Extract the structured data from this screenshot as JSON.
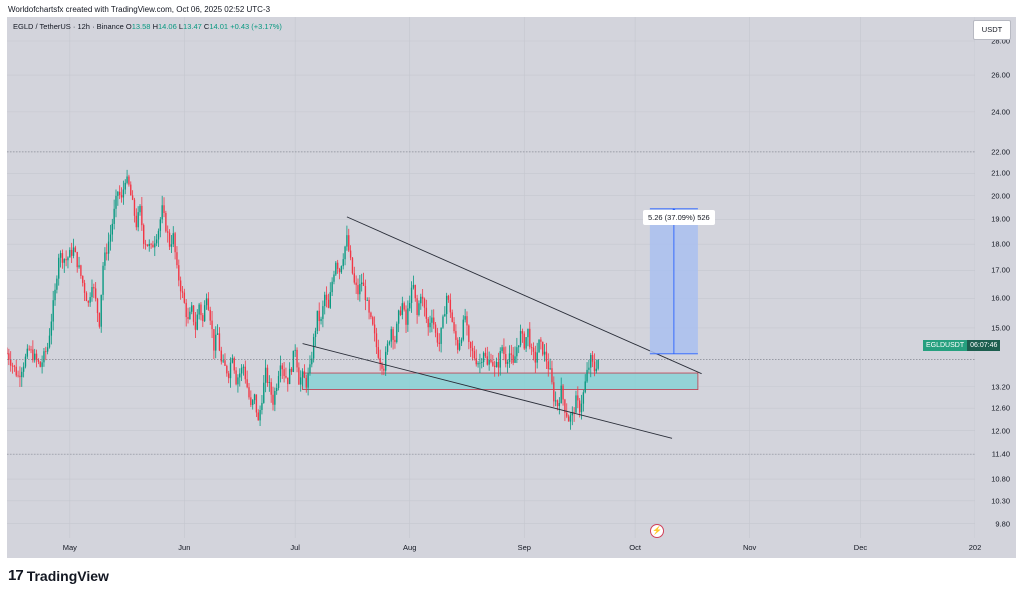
{
  "credit": "Worldofchartsfx created with TradingView.com, Oct 06, 2025 02:52 UTC-3",
  "legend": {
    "symbol": "EGLD / TetherUS · 12h · Binance",
    "o_label": "O",
    "o": "13.58",
    "h_label": "H",
    "h": "14.06",
    "l_label": "L",
    "l": "13.47",
    "c_label": "C",
    "c": "14.01",
    "change": "+0.43 (+3.17%)"
  },
  "currency_badge": "USDT",
  "price_tag": {
    "symbol": "EGLDUSDT",
    "countdown": "06:07:46"
  },
  "measure_label": "5.26 (37.09%) 526",
  "brand": {
    "logo": "17",
    "name": "TradingView"
  },
  "colors": {
    "up": "#089981",
    "down": "#f23645",
    "background": "#d3d4dc",
    "zone_fill": "#7fd3d6",
    "zone_border": "#c0394b",
    "projection_fill": "#a9bff0",
    "projection_line": "#2962ff"
  },
  "flash_icon": "lightning-icon",
  "chart_data": {
    "type": "candlestick",
    "interval": "12h",
    "scale": "log",
    "y_ticks": [
      "28.00",
      "26.00",
      "24.00",
      "22.00",
      "21.00",
      "20.00",
      "19.00",
      "18.00",
      "17.00",
      "16.00",
      "15.00",
      "13.20",
      "12.60",
      "12.00",
      "11.40",
      "10.80",
      "10.30",
      "9.80"
    ],
    "x_ticks": [
      "May",
      "Jun",
      "Jul",
      "Aug",
      "Sep",
      "Oct",
      "Nov",
      "Dec",
      "202"
    ],
    "x_tick_days": [
      0,
      31,
      61,
      92,
      123,
      153,
      184,
      214,
      245
    ],
    "ylim": [
      9.5,
      29.5
    ],
    "xlim_days": [
      -17,
      245
    ],
    "horizontal_levels": [
      22.0,
      11.4
    ],
    "last_price": 14.01,
    "support_zone": {
      "start_day": 63,
      "end_day": 170,
      "top": 13.6,
      "bottom": 13.12
    },
    "trendlines": [
      {
        "name": "upper",
        "from": {
          "day": 75,
          "price": 19.1
        },
        "to": {
          "day": 171,
          "price": 13.58
        }
      },
      {
        "name": "lower",
        "from": {
          "day": 63,
          "price": 14.5
        },
        "to": {
          "day": 163,
          "price": 11.8
        }
      }
    ],
    "projection": {
      "start_day": 157,
      "end_day": 170,
      "from_price": 14.18,
      "to_price": 19.44,
      "change": "5.26",
      "percent": "37.09%",
      "bars": "526"
    },
    "path": [
      [
        -17,
        14.2
      ],
      [
        -14,
        13.5
      ],
      [
        -11,
        14.3
      ],
      [
        -8,
        13.8
      ],
      [
        -6,
        14.4
      ],
      [
        -4,
        16.2
      ],
      [
        -3,
        17.6
      ],
      [
        -1,
        17.4
      ],
      [
        1,
        17.8
      ],
      [
        3,
        16.8
      ],
      [
        5,
        15.8
      ],
      [
        6,
        16.6
      ],
      [
        8,
        15.2
      ],
      [
        9,
        17.2
      ],
      [
        11,
        18.4
      ],
      [
        13,
        20.2
      ],
      [
        14,
        19.8
      ],
      [
        15,
        20.8
      ],
      [
        16,
        20.4
      ],
      [
        17,
        19.6
      ],
      [
        18,
        18.8
      ],
      [
        19,
        19.4
      ],
      [
        20,
        18.2
      ],
      [
        22,
        17.8
      ],
      [
        24,
        18.6
      ],
      [
        25,
        19.4
      ],
      [
        27,
        18.0
      ],
      [
        28,
        18.3
      ],
      [
        29,
        17.0
      ],
      [
        30,
        16.4
      ],
      [
        31,
        15.8
      ],
      [
        32,
        15.2
      ],
      [
        33,
        15.6
      ],
      [
        34,
        15.0
      ],
      [
        35,
        15.8
      ],
      [
        36,
        15.2
      ],
      [
        37,
        16.2
      ],
      [
        38,
        15.4
      ],
      [
        39,
        14.4
      ],
      [
        40,
        14.8
      ],
      [
        41,
        13.9
      ],
      [
        43,
        13.6
      ],
      [
        44,
        14.2
      ],
      [
        45,
        13.4
      ],
      [
        47,
        13.8
      ],
      [
        48,
        13.2
      ],
      [
        49,
        12.6
      ],
      [
        50,
        12.9
      ],
      [
        51,
        12.2
      ],
      [
        52,
        12.9
      ],
      [
        53,
        13.6
      ],
      [
        54,
        13.2
      ],
      [
        55,
        12.8
      ],
      [
        56,
        13.3
      ],
      [
        57,
        14.0
      ],
      [
        58,
        13.6
      ],
      [
        59,
        13.4
      ],
      [
        60,
        13.8
      ],
      [
        61,
        14.4
      ],
      [
        62,
        13.4
      ],
      [
        63,
        13.5
      ],
      [
        64,
        13.3
      ],
      [
        65,
        13.7
      ],
      [
        66,
        14.6
      ],
      [
        67,
        15.4
      ],
      [
        68,
        15.2
      ],
      [
        69,
        16.1
      ],
      [
        70,
        15.6
      ],
      [
        71,
        16.6
      ],
      [
        72,
        17.4
      ],
      [
        73,
        17.0
      ],
      [
        74,
        17.6
      ],
      [
        75,
        18.2
      ],
      [
        76,
        17.3
      ],
      [
        77,
        16.5
      ],
      [
        78,
        16.2
      ],
      [
        79,
        16.6
      ],
      [
        80,
        16.1
      ],
      [
        81,
        15.4
      ],
      [
        82,
        15.0
      ],
      [
        83,
        14.4
      ],
      [
        84,
        14.0
      ],
      [
        85,
        13.8
      ],
      [
        86,
        14.4
      ],
      [
        87,
        15.0
      ],
      [
        88,
        14.6
      ],
      [
        89,
        15.4
      ],
      [
        90,
        15.8
      ],
      [
        91,
        15.1
      ],
      [
        92,
        16.0
      ],
      [
        93,
        16.4
      ],
      [
        94,
        15.4
      ],
      [
        95,
        16.2
      ],
      [
        96,
        15.6
      ],
      [
        97,
        15.0
      ],
      [
        98,
        15.5
      ],
      [
        99,
        14.8
      ],
      [
        100,
        14.5
      ],
      [
        101,
        15.2
      ],
      [
        102,
        16.1
      ],
      [
        103,
        15.6
      ],
      [
        104,
        14.8
      ],
      [
        105,
        14.4
      ],
      [
        106,
        14.8
      ],
      [
        107,
        15.4
      ],
      [
        108,
        14.4
      ],
      [
        109,
        14.2
      ],
      [
        110,
        14.0
      ],
      [
        111,
        13.9
      ],
      [
        112,
        14.3
      ],
      [
        113,
        13.8
      ],
      [
        114,
        14.1
      ],
      [
        115,
        13.7
      ],
      [
        116,
        13.9
      ],
      [
        117,
        14.4
      ],
      [
        118,
        14.0
      ],
      [
        119,
        14.2
      ],
      [
        120,
        13.8
      ],
      [
        121,
        14.4
      ],
      [
        122,
        14.8
      ],
      [
        123,
        14.5
      ],
      [
        124,
        14.9
      ],
      [
        125,
        14.2
      ],
      [
        126,
        14.0
      ],
      [
        127,
        14.5
      ],
      [
        128,
        14.3
      ],
      [
        129,
        14.0
      ],
      [
        130,
        13.6
      ],
      [
        131,
        12.9
      ],
      [
        132,
        12.7
      ],
      [
        133,
        13.1
      ],
      [
        134,
        12.6
      ],
      [
        135,
        12.3
      ],
      [
        136,
        12.4
      ],
      [
        137,
        12.8
      ],
      [
        138,
        12.6
      ],
      [
        139,
        13.0
      ],
      [
        140,
        13.6
      ],
      [
        141,
        14.0
      ],
      [
        142,
        13.7
      ],
      [
        143,
        14.01
      ]
    ]
  }
}
